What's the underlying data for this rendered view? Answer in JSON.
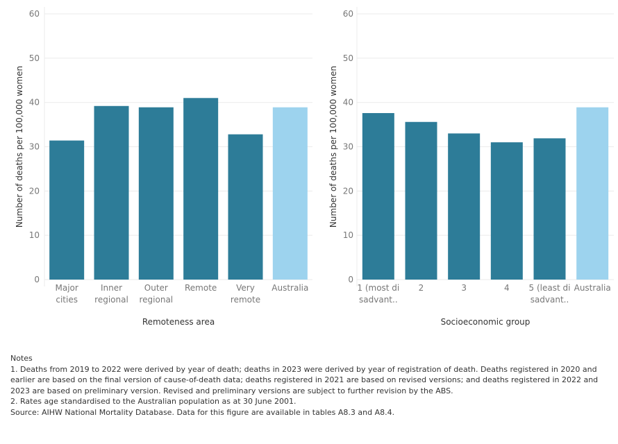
{
  "chart_data": [
    {
      "type": "bar",
      "categories": [
        [
          "Major",
          "cities"
        ],
        [
          "Inner",
          "regional"
        ],
        [
          "Outer",
          "regional"
        ],
        [
          "Remote"
        ],
        [
          "Very",
          "remote"
        ],
        [
          "Australia"
        ]
      ],
      "values": [
        31.4,
        39.2,
        38.9,
        41.0,
        32.8,
        38.9
      ],
      "highlight_index": 5,
      "xlabel": "Remoteness area",
      "ylabel": "Number of deaths per 100,000 women",
      "ylim": [
        0,
        60
      ],
      "yticks": [
        0,
        10,
        20,
        30,
        40,
        50,
        60
      ],
      "grid": true
    },
    {
      "type": "bar",
      "categories": [
        [
          "1 (most di",
          "sadvant.."
        ],
        [
          "2"
        ],
        [
          "3"
        ],
        [
          "4"
        ],
        [
          "5 (least di",
          "sadvant.."
        ],
        [
          "Australia"
        ]
      ],
      "values": [
        37.6,
        35.6,
        33.0,
        31.0,
        31.9,
        38.9
      ],
      "highlight_index": 5,
      "xlabel": "Socioeconomic group",
      "ylabel": "Number of deaths per 100,000 women",
      "ylim": [
        0,
        60
      ],
      "yticks": [
        0,
        10,
        20,
        30,
        40,
        50,
        60
      ],
      "grid": true
    }
  ],
  "colors": {
    "bar": "#2d7c98",
    "highlight": "#9dd3ee",
    "grid": "#ebebeb"
  },
  "notes": {
    "heading": "Notes",
    "lines": [
      "1.   Deaths from 2019 to 2022 were derived by year of death; deaths in 2023 were derived by year of registration of death. Deaths registered in 2020 and earlier are based on the final version of cause-of-death data; deaths registered in 2021 are based on revised versions; and deaths registered in 2022 and 2023 are based on preliminary version. Revised and preliminary versions are subject to further revision by the ABS.",
      "2.   Rates age standardised to the Australian population as at 30 June 2001.",
      "Source: AIHW National Mortality Database. Data for this figure are available in tables A8.3 and A8.4."
    ]
  }
}
